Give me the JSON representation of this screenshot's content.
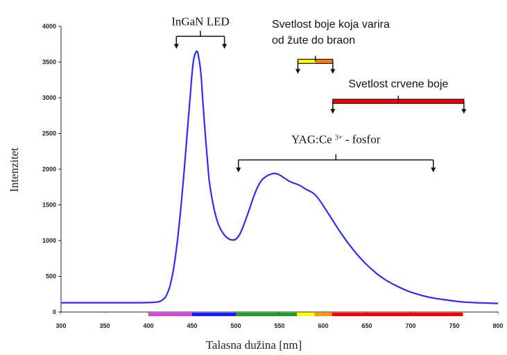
{
  "chart_data": {
    "type": "line",
    "title": "",
    "xlabel": "Talasna dužina [nm]",
    "ylabel": "Intenzitet",
    "xlim": [
      300,
      800
    ],
    "ylim": [
      0,
      4000
    ],
    "x_ticks": [
      300,
      350,
      400,
      450,
      500,
      550,
      600,
      650,
      700,
      750,
      800
    ],
    "y_ticks": [
      0,
      500,
      1000,
      1500,
      2000,
      2500,
      3000,
      3500,
      4000
    ],
    "grid": false,
    "series": [
      {
        "color": "#2b2bff",
        "x": [
          300,
          320,
          340,
          360,
          380,
          400,
          410,
          415,
          420,
          425,
          430,
          435,
          440,
          445,
          448,
          450,
          452,
          455,
          457,
          460,
          462,
          465,
          468,
          470,
          475,
          480,
          485,
          490,
          495,
          500,
          505,
          510,
          515,
          520,
          525,
          530,
          535,
          540,
          545,
          550,
          555,
          560,
          565,
          570,
          575,
          580,
          585,
          590,
          595,
          600,
          610,
          620,
          630,
          640,
          650,
          660,
          670,
          680,
          690,
          700,
          720,
          740,
          760,
          780,
          800
        ],
        "y": [
          130,
          130,
          130,
          130,
          130,
          132,
          140,
          160,
          220,
          380,
          700,
          1200,
          1850,
          2600,
          3050,
          3350,
          3550,
          3650,
          3600,
          3350,
          3000,
          2500,
          2050,
          1800,
          1450,
          1230,
          1110,
          1040,
          1010,
          1020,
          1100,
          1250,
          1420,
          1600,
          1750,
          1850,
          1900,
          1930,
          1940,
          1920,
          1880,
          1840,
          1810,
          1790,
          1760,
          1720,
          1690,
          1650,
          1580,
          1490,
          1300,
          1110,
          940,
          790,
          660,
          550,
          460,
          390,
          330,
          280,
          210,
          170,
          140,
          128,
          120
        ]
      }
    ],
    "spectrum_bar": [
      {
        "from": 300,
        "to": 400,
        "color": "#ffffff"
      },
      {
        "from": 400,
        "to": 450,
        "color": "#e040e0"
      },
      {
        "from": 450,
        "to": 500,
        "color": "#1a1aff"
      },
      {
        "from": 500,
        "to": 570,
        "color": "#1aa01a"
      },
      {
        "from": 570,
        "to": 590,
        "color": "#ffff00"
      },
      {
        "from": 590,
        "to": 610,
        "color": "#ff9900"
      },
      {
        "from": 610,
        "to": 760,
        "color": "#ff0000"
      },
      {
        "from": 760,
        "to": 800,
        "color": "#ffffff"
      }
    ],
    "annotations": [
      {
        "text": "InGaN LED",
        "from": 432,
        "to": 487,
        "y": 3860
      },
      {
        "text1": "Svetlost boje koja varira",
        "text2": "od žute do braon",
        "from": 571,
        "to": 611,
        "y": 3510,
        "colors": [
          "#ffff00",
          "#ff8000"
        ]
      },
      {
        "text": "Svetlost crvene boje",
        "from": 611,
        "to": 761,
        "y": 2950,
        "color": "#ff0000"
      },
      {
        "text": "YAG:Ce",
        "sup": "3+",
        "suffix": " - fosfor",
        "from": 503,
        "to": 726,
        "y": 2130
      }
    ]
  }
}
